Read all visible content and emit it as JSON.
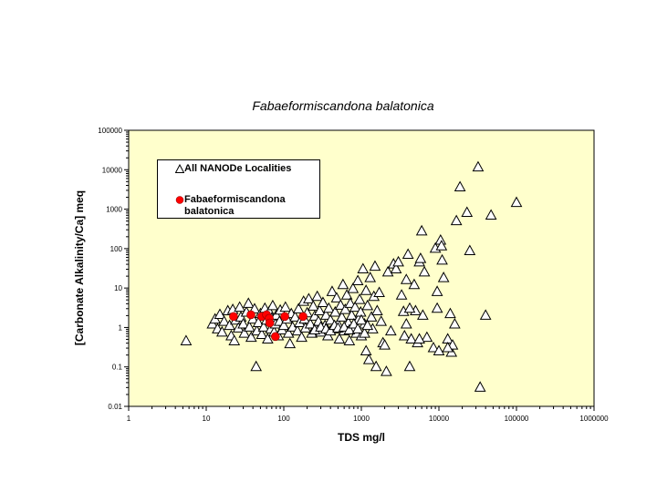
{
  "chart_data": {
    "type": "scatter",
    "title": "Fabaeformiscandona balatonica",
    "xlabel": "TDS  mg/l",
    "ylabel": "[Carbonate Alkalinity/Ca] meq",
    "xscale": "log",
    "yscale": "log",
    "xlim": [
      1,
      1000000
    ],
    "ylim": [
      0.01,
      100000
    ],
    "xticks": [
      "1",
      "10",
      "100",
      "1000",
      "10000",
      "100000",
      "1000000"
    ],
    "yticks": [
      "0.01",
      "0.1",
      "1",
      "10",
      "100",
      "1000",
      "10000",
      "100000"
    ],
    "grid": false,
    "background": "#FFFFCC",
    "legend_position": "top-left",
    "series": [
      {
        "name": "All NANODe Localities",
        "marker": "triangle-open",
        "color": "#000000",
        "points": [
          [
            5.5,
            0.45
          ],
          [
            12,
            1.2
          ],
          [
            13,
            1.6
          ],
          [
            15,
            2.1
          ],
          [
            14,
            0.9
          ],
          [
            17,
            1.4
          ],
          [
            16,
            0.75
          ],
          [
            19,
            2.6
          ],
          [
            20,
            1.1
          ],
          [
            21,
            0.6
          ],
          [
            22,
            2.8
          ],
          [
            23,
            0.45
          ],
          [
            24,
            1.5
          ],
          [
            26,
            0.95
          ],
          [
            27,
            3.2
          ],
          [
            28,
            1.8
          ],
          [
            30,
            1.2
          ],
          [
            31,
            0.7
          ],
          [
            33,
            2.4
          ],
          [
            35,
            4.0
          ],
          [
            36,
            1.0
          ],
          [
            38,
            0.55
          ],
          [
            40,
            1.6
          ],
          [
            42,
            2.9
          ],
          [
            44,
            0.1
          ],
          [
            45,
            0.8
          ],
          [
            47,
            1.3
          ],
          [
            50,
            2.2
          ],
          [
            52,
            0.65
          ],
          [
            55,
            1.0
          ],
          [
            57,
            3.0
          ],
          [
            60,
            1.5
          ],
          [
            62,
            0.5
          ],
          [
            65,
            2.5
          ],
          [
            68,
            0.9
          ],
          [
            70,
            1.7
          ],
          [
            72,
            3.5
          ],
          [
            75,
            0.75
          ],
          [
            78,
            1.2
          ],
          [
            80,
            2.0
          ],
          [
            85,
            0.6
          ],
          [
            88,
            1.4
          ],
          [
            90,
            2.7
          ],
          [
            95,
            0.85
          ],
          [
            100,
            1.1
          ],
          [
            105,
            3.2
          ],
          [
            110,
            1.6
          ],
          [
            115,
            0.7
          ],
          [
            120,
            0.38
          ],
          [
            125,
            2.2
          ],
          [
            130,
            1.0
          ],
          [
            140,
            1.8
          ],
          [
            150,
            0.8
          ],
          [
            155,
            2.9
          ],
          [
            160,
            1.3
          ],
          [
            170,
            0.55
          ],
          [
            180,
            4.5
          ],
          [
            185,
            1.6
          ],
          [
            190,
            0.95
          ],
          [
            200,
            2.3
          ],
          [
            210,
            5.2
          ],
          [
            220,
            1.2
          ],
          [
            230,
            0.7
          ],
          [
            240,
            3.4
          ],
          [
            250,
            1.9
          ],
          [
            260,
            0.9
          ],
          [
            270,
            6.0
          ],
          [
            280,
            1.4
          ],
          [
            290,
            2.6
          ],
          [
            300,
            0.75
          ],
          [
            320,
            4.2
          ],
          [
            340,
            1.1
          ],
          [
            350,
            2.0
          ],
          [
            370,
            0.6
          ],
          [
            380,
            3.0
          ],
          [
            400,
            1.5
          ],
          [
            420,
            8.0
          ],
          [
            440,
            0.9
          ],
          [
            460,
            2.4
          ],
          [
            480,
            5.5
          ],
          [
            500,
            1.2
          ],
          [
            520,
            0.5
          ],
          [
            540,
            3.6
          ],
          [
            560,
            1.8
          ],
          [
            580,
            12
          ],
          [
            600,
            0.8
          ],
          [
            620,
            2.8
          ],
          [
            650,
            6.5
          ],
          [
            680,
            1.3
          ],
          [
            700,
            0.45
          ],
          [
            720,
            4.0
          ],
          [
            750,
            2.0
          ],
          [
            780,
            9.5
          ],
          [
            800,
            1.0
          ],
          [
            830,
            3.2
          ],
          [
            860,
            0.7
          ],
          [
            900,
            15
          ],
          [
            920,
            1.6
          ],
          [
            950,
            5.0
          ],
          [
            980,
            2.4
          ],
          [
            1000,
            0.6
          ],
          [
            1050,
            30
          ],
          [
            1100,
            1.2
          ],
          [
            1150,
            8.5
          ],
          [
            1150,
            0.25
          ],
          [
            1200,
            3.5
          ],
          [
            1250,
            0.15
          ],
          [
            1300,
            18
          ],
          [
            1350,
            1.8
          ],
          [
            1400,
            0.9
          ],
          [
            1450,
            6.0
          ],
          [
            1500,
            35
          ],
          [
            1550,
            0.1
          ],
          [
            1600,
            2.6
          ],
          [
            1700,
            7.5
          ],
          [
            1800,
            1.4
          ],
          [
            1900,
            0.4
          ],
          [
            2000,
            0.35
          ],
          [
            2100,
            0.075
          ],
          [
            2200,
            25
          ],
          [
            2400,
            0.8
          ],
          [
            2600,
            40
          ],
          [
            2800,
            30
          ],
          [
            3000,
            45
          ],
          [
            3300,
            6.5
          ],
          [
            3500,
            2.5
          ],
          [
            3600,
            0.6
          ],
          [
            3800,
            1.2
          ],
          [
            4000,
            70
          ],
          [
            4200,
            0.1
          ],
          [
            4400,
            0.5
          ],
          [
            4800,
            12
          ],
          [
            5000,
            2.6
          ],
          [
            5300,
            0.4
          ],
          [
            5600,
            45
          ],
          [
            5800,
            55
          ],
          [
            6000,
            275
          ],
          [
            6200,
            2.0
          ],
          [
            6500,
            25
          ],
          [
            7000,
            0.55
          ],
          [
            8500,
            0.3
          ],
          [
            9000,
            100
          ],
          [
            9500,
            3.0
          ],
          [
            10000,
            0.25
          ],
          [
            10500,
            160
          ],
          [
            10800,
            115
          ],
          [
            11000,
            50
          ],
          [
            11500,
            18
          ],
          [
            13000,
            0.5
          ],
          [
            14000,
            2.2
          ],
          [
            14500,
            0.23
          ],
          [
            15000,
            0.35
          ],
          [
            16000,
            1.2
          ],
          [
            16800,
            500
          ],
          [
            18700,
            3600
          ],
          [
            23000,
            810
          ],
          [
            25000,
            87
          ],
          [
            32000,
            11500
          ],
          [
            34000,
            0.03
          ],
          [
            40000,
            2.0
          ],
          [
            47000,
            690
          ],
          [
            100000,
            1450
          ],
          [
            13000,
            0.3
          ],
          [
            9500,
            8
          ],
          [
            5600,
            0.5
          ],
          [
            4200,
            3
          ],
          [
            3800,
            16
          ],
          [
            250,
            0.85
          ],
          [
            300,
            1.0
          ],
          [
            350,
            0.9
          ],
          [
            400,
            0.8
          ],
          [
            450,
            1.1
          ],
          [
            500,
            0.95
          ],
          [
            600,
            1.0
          ],
          [
            700,
            0.85
          ],
          [
            800,
            1.2
          ],
          [
            900,
            0.9
          ],
          [
            1000,
            1.5
          ],
          [
            1100,
            0.7
          ],
          [
            1200,
            1.1
          ]
        ]
      },
      {
        "name": "Fabaeformiscandona balatonica",
        "marker": "circle-filled",
        "color": "#FF0000",
        "points": [
          [
            22.5,
            1.9
          ],
          [
            37.7,
            2.1
          ],
          [
            52,
            1.9
          ],
          [
            60,
            2.1
          ],
          [
            65,
            1.7
          ],
          [
            66,
            1.3
          ],
          [
            103,
            1.9
          ],
          [
            177,
            1.9
          ],
          [
            78,
            0.59
          ]
        ]
      }
    ]
  }
}
